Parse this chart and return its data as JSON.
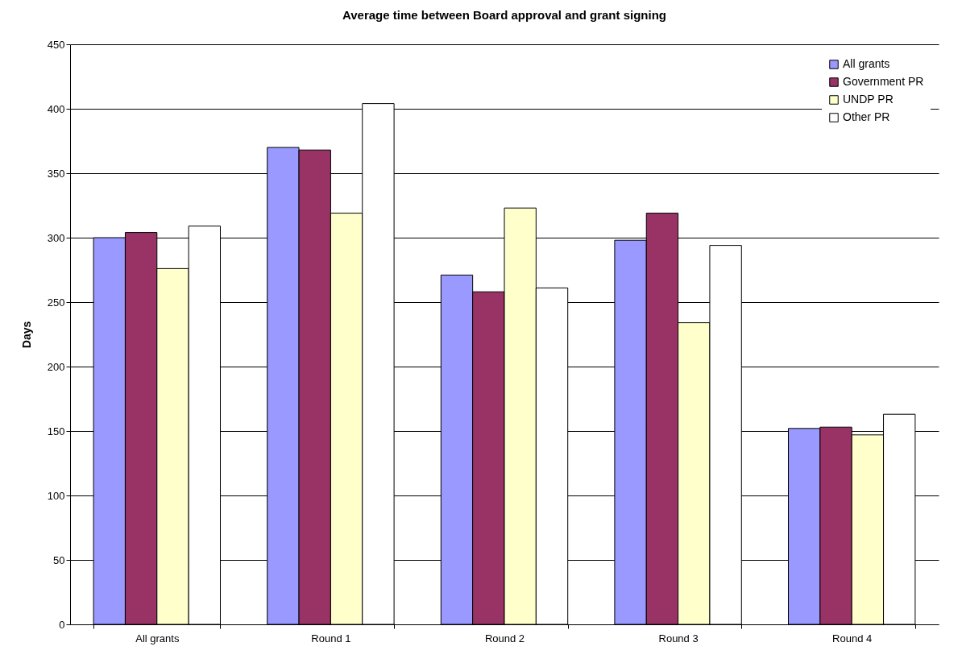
{
  "chart_data": {
    "type": "bar",
    "title": "Average time between Board approval and grant signing",
    "ylabel": "Days",
    "categories": [
      "All grants",
      "Round 1",
      "Round 2",
      "Round 3",
      "Round 4"
    ],
    "series": [
      {
        "name": "All grants",
        "color": "#9999ff",
        "values": [
          300,
          370,
          271,
          298,
          152
        ]
      },
      {
        "name": "Government PR",
        "color": "#993366",
        "values": [
          304,
          368,
          258,
          319,
          153
        ]
      },
      {
        "name": "UNDP PR",
        "color": "#ffffcc",
        "values": [
          276,
          319,
          323,
          234,
          147
        ]
      },
      {
        "name": "Other PR",
        "color": "#ffffff",
        "values": [
          309,
          404,
          261,
          294,
          163
        ]
      }
    ],
    "ylim": [
      0,
      450
    ],
    "yticks": [
      0,
      50,
      100,
      150,
      200,
      250,
      300,
      350,
      400,
      450
    ],
    "grid": "y",
    "legend": "top right"
  }
}
